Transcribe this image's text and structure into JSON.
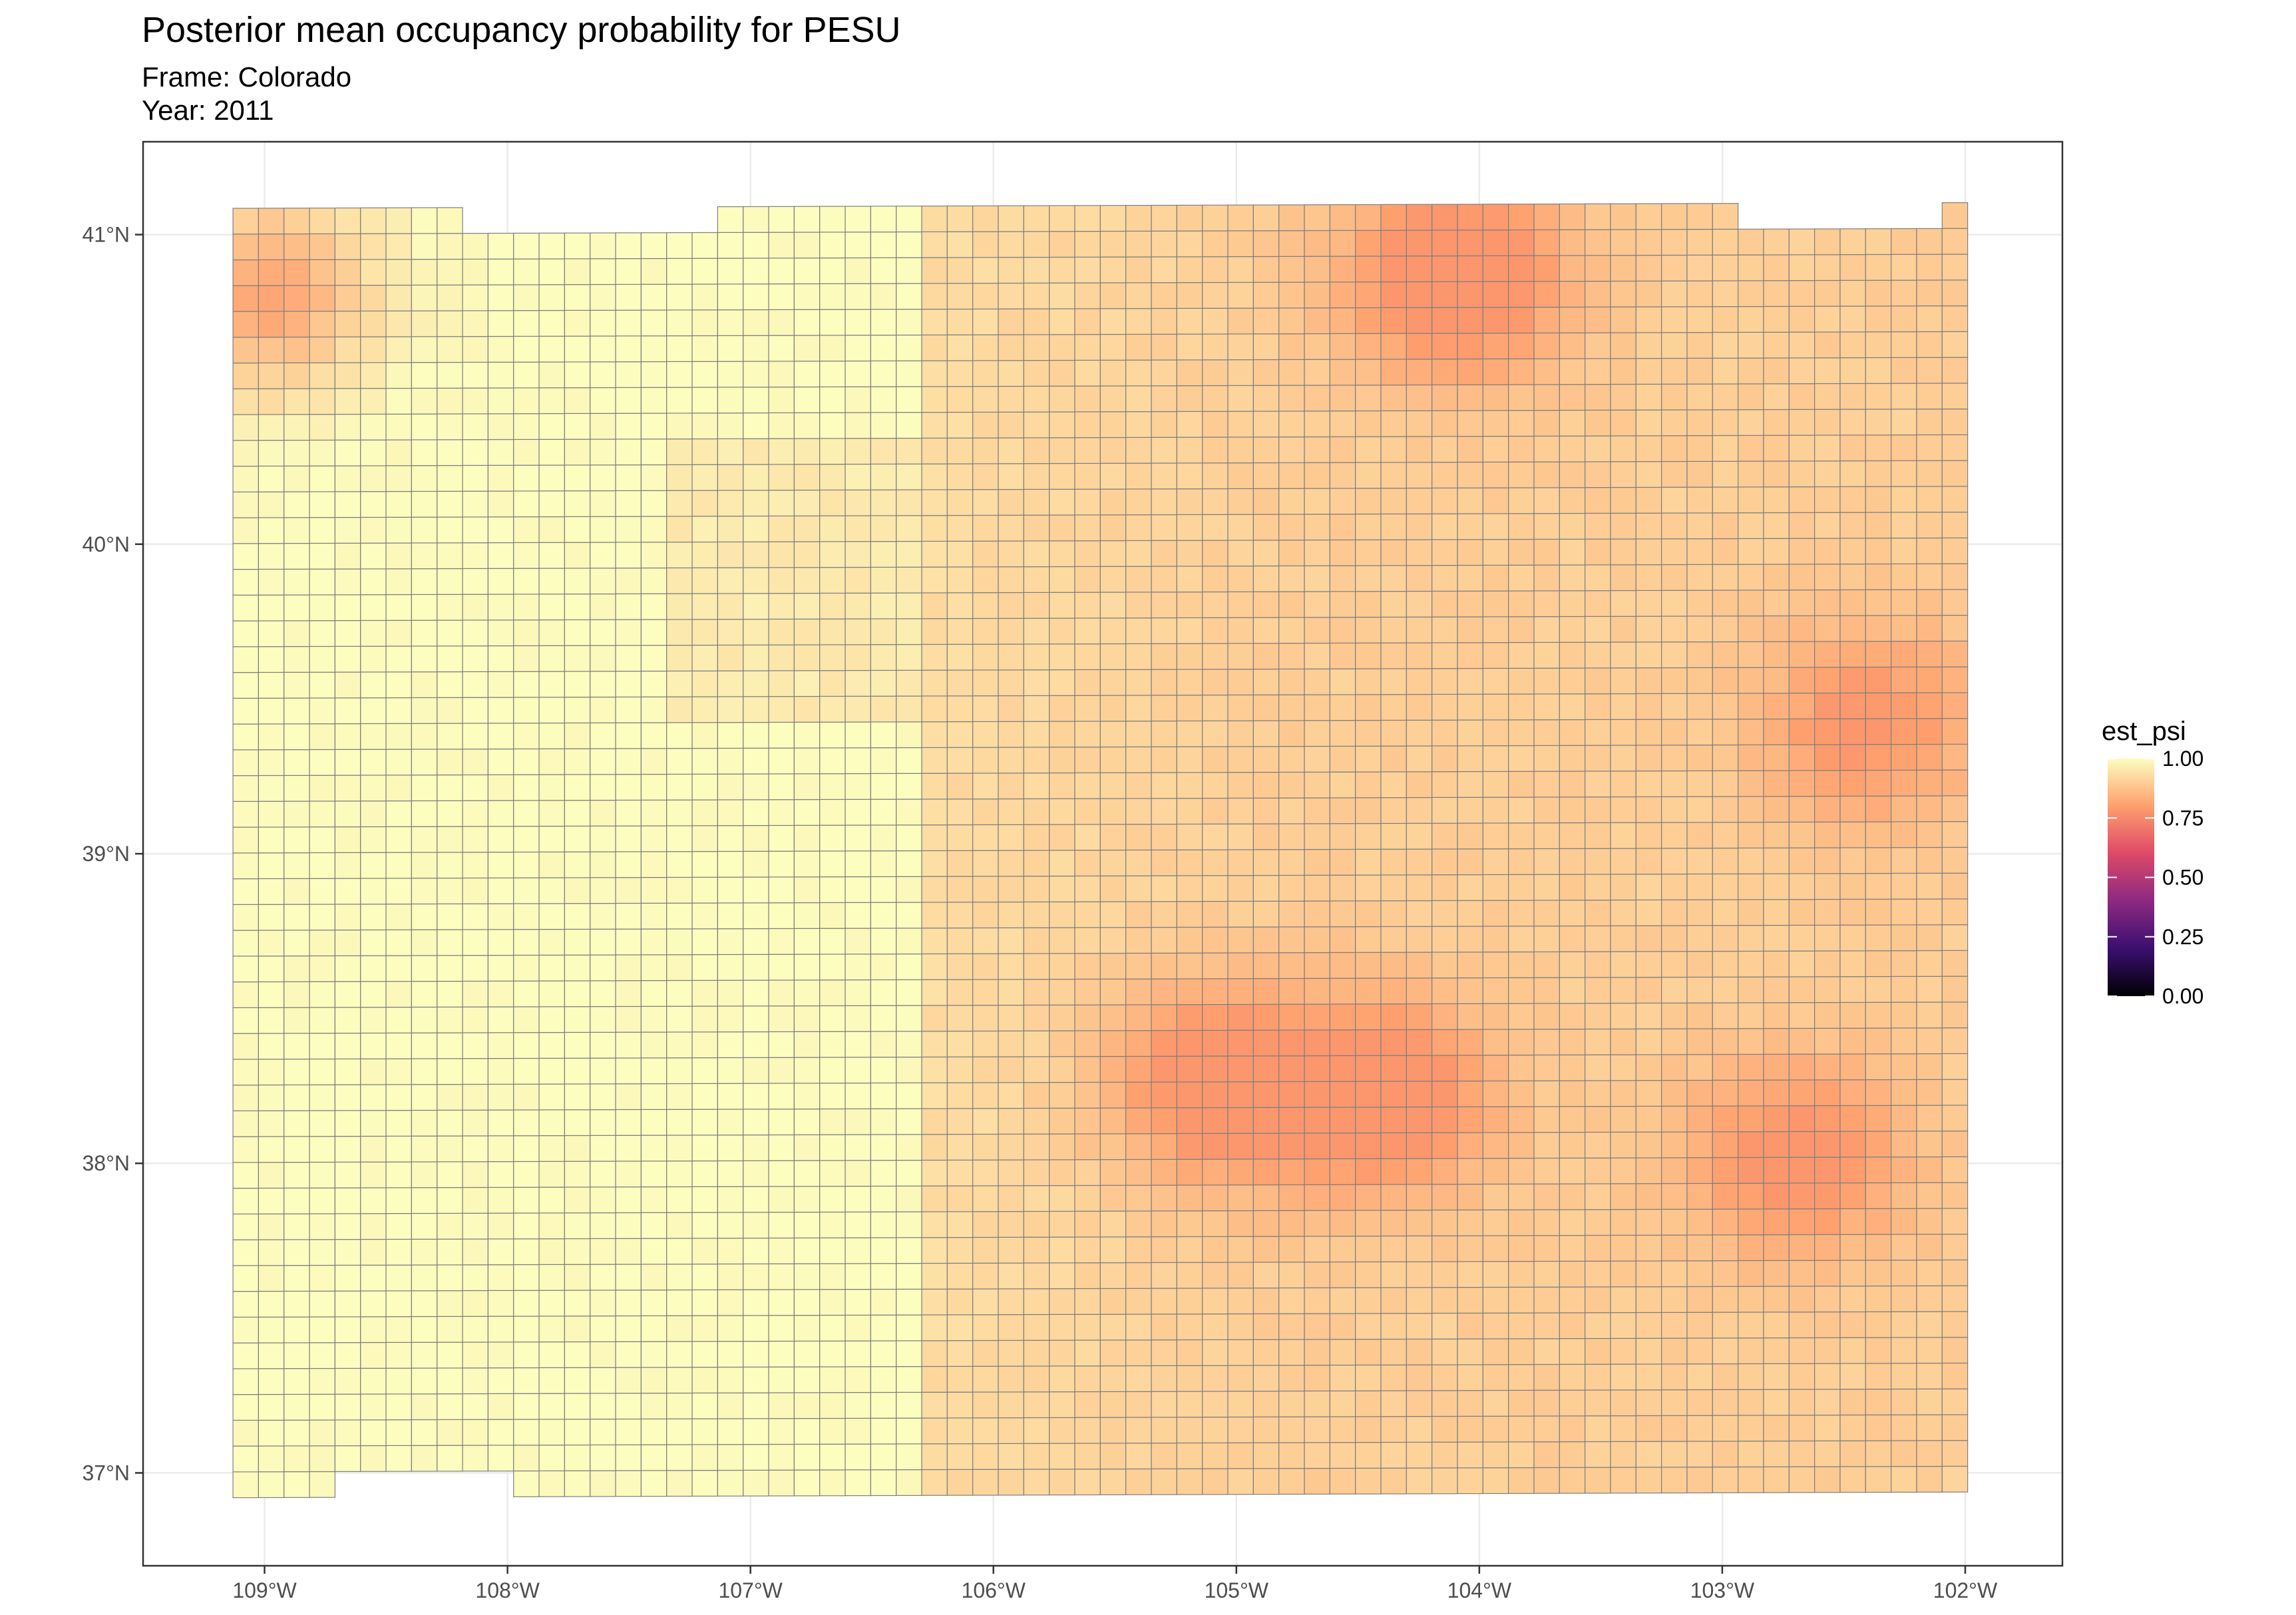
{
  "title": "Posterior mean occupancy probability for PESU",
  "subtitle_frame": "Frame: Colorado",
  "subtitle_year": "Year: 2011",
  "chart_data": {
    "type": "heatmap",
    "geometry": "grid cells over Colorado (lon/lat)",
    "xlim": [
      -109.5,
      -101.6
    ],
    "ylim": [
      36.7,
      41.3
    ],
    "x_ticks": [
      -109,
      -108,
      -107,
      -106,
      -105,
      -104,
      -103,
      -102
    ],
    "x_tick_labels": [
      "109°W",
      "108°W",
      "107°W",
      "106°W",
      "105°W",
      "104°W",
      "103°W",
      "102°W"
    ],
    "y_ticks": [
      37,
      38,
      39,
      40,
      41
    ],
    "y_tick_labels": [
      "37°N",
      "38°N",
      "39°N",
      "40°N",
      "41°N"
    ],
    "grid": true,
    "cell_size_deg": [
      0.105,
      0.0833
    ],
    "fill_variable": "est_psi",
    "color_scale": {
      "name": "magma",
      "limits": [
        0,
        1
      ],
      "stops": [
        "#000004",
        "#3b0f70",
        "#8c2981",
        "#de4968",
        "#fe9f6d",
        "#fcfdbf"
      ]
    },
    "legend": {
      "title": "est_psi",
      "placement": "right",
      "breaks": [
        1.0,
        0.75,
        0.5,
        0.25,
        0.0
      ],
      "labels": [
        "1.00",
        "0.75",
        "0.50",
        "0.25",
        "0.00"
      ]
    },
    "value_range_shown": [
      0.78,
      1.0
    ],
    "low_value_hotspots": [
      {
        "lon": -104.1,
        "lat": 40.85,
        "value": 0.8
      },
      {
        "lon": -109.0,
        "lat": 40.8,
        "value": 0.8
      },
      {
        "lon": -104.4,
        "lat": 38.2,
        "value": 0.82
      },
      {
        "lon": -105.1,
        "lat": 38.25,
        "value": 0.82
      },
      {
        "lon": -102.7,
        "lat": 38.0,
        "value": 0.84
      },
      {
        "lon": -102.4,
        "lat": 39.4,
        "value": 0.86
      }
    ],
    "colors": {
      "cell_border": "#7f7f7f",
      "panel_border": "#333333",
      "gridline": "#ebebeb"
    }
  }
}
